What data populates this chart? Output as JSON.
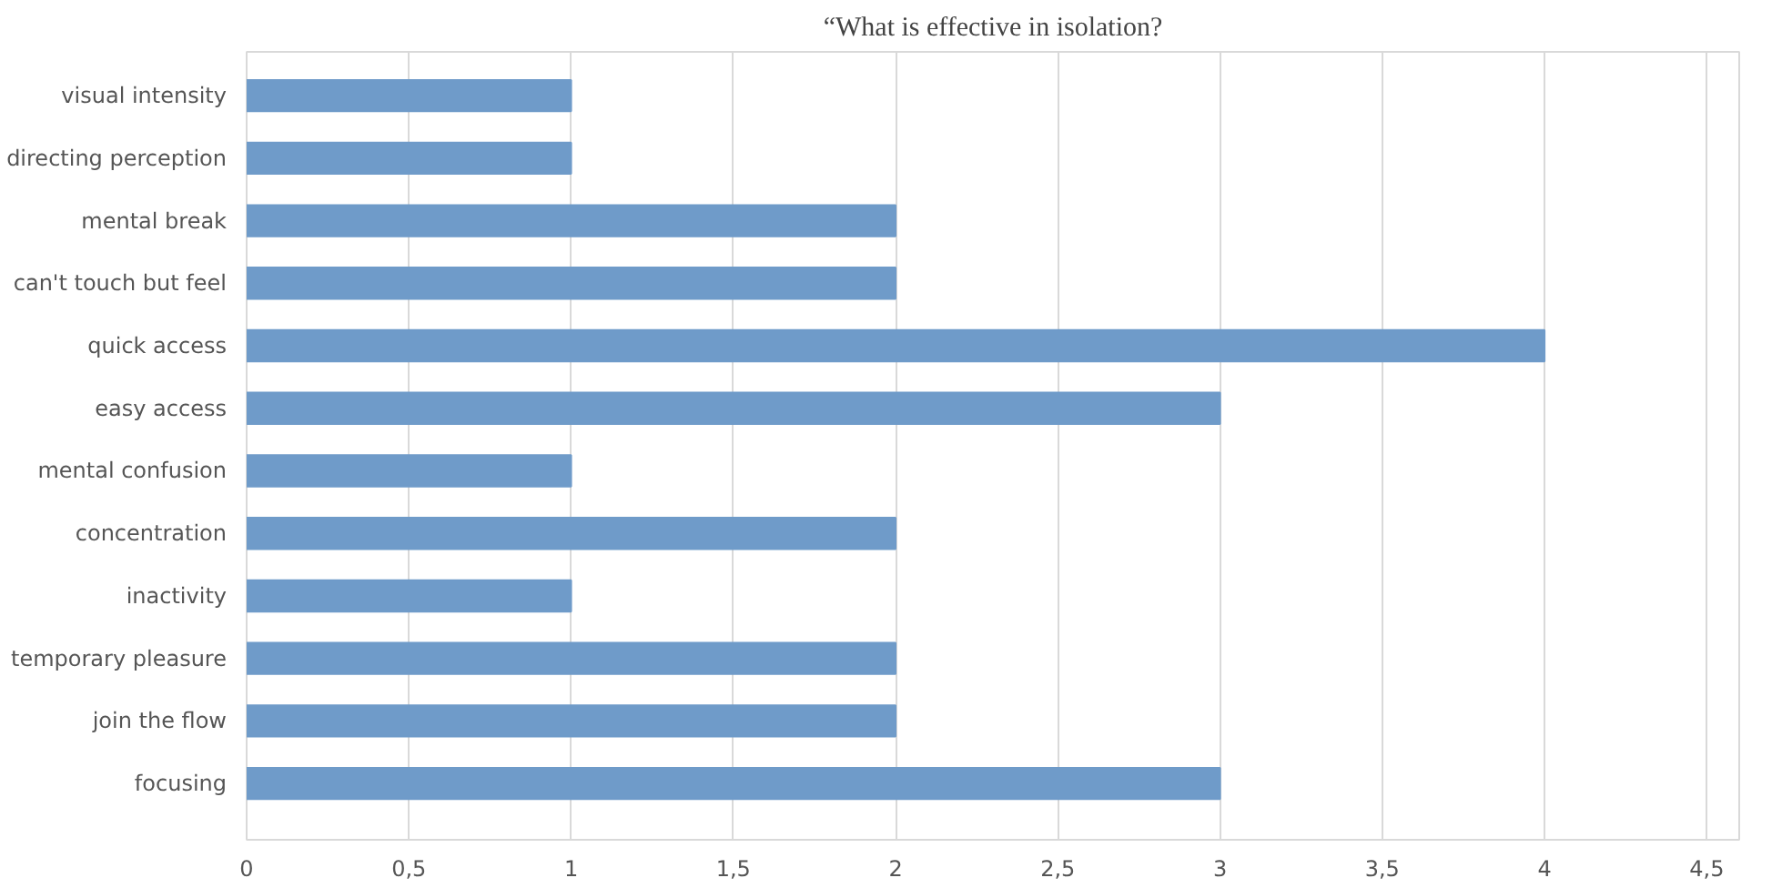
{
  "chart_data": {
    "type": "bar",
    "orientation": "horizontal",
    "title": "“What is effective in isolation?",
    "categories": [
      "visual intensity",
      "directing perception",
      "mental break",
      "can't touch but feel",
      "quick access",
      "easy access",
      "mental confusion",
      "concentration",
      "inactivity",
      "temporary pleasure",
      "join the flow",
      "focusing"
    ],
    "values": [
      1,
      1,
      2,
      2,
      4,
      3,
      1,
      2,
      1,
      2,
      2,
      3
    ],
    "color": "#6f9bc9",
    "xlim": [
      0,
      4.6
    ],
    "xticks": [
      0,
      {
        "value": 0.5,
        "label": "0,5"
      },
      1,
      {
        "value": 1.5,
        "label": "1,5"
      },
      2,
      {
        "value": 2.5,
        "label": "2,5"
      },
      3,
      {
        "value": 3.5,
        "label": "3,5"
      },
      4,
      {
        "value": 4.5,
        "label": "4,5"
      }
    ],
    "grid": "x"
  }
}
